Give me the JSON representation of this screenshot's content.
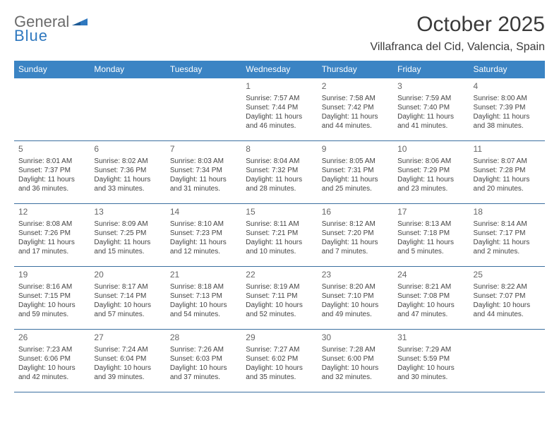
{
  "brand": {
    "line1": "General",
    "line2": "Blue"
  },
  "title": "October 2025",
  "location": "Villafranca del Cid, Valencia, Spain",
  "colors": {
    "header_bg": "#3b84c4",
    "header_text": "#ffffff",
    "rule": "#3b6fa0",
    "brand_gray": "#6b6b6b",
    "brand_blue": "#2f78bf",
    "text": "#444444"
  },
  "dow": [
    "Sunday",
    "Monday",
    "Tuesday",
    "Wednesday",
    "Thursday",
    "Friday",
    "Saturday"
  ],
  "weeks": [
    [
      {
        "n": "",
        "sr": "",
        "ss": "",
        "dl1": "",
        "dl2": ""
      },
      {
        "n": "",
        "sr": "",
        "ss": "",
        "dl1": "",
        "dl2": ""
      },
      {
        "n": "",
        "sr": "",
        "ss": "",
        "dl1": "",
        "dl2": ""
      },
      {
        "n": "1",
        "sr": "Sunrise: 7:57 AM",
        "ss": "Sunset: 7:44 PM",
        "dl1": "Daylight: 11 hours",
        "dl2": "and 46 minutes."
      },
      {
        "n": "2",
        "sr": "Sunrise: 7:58 AM",
        "ss": "Sunset: 7:42 PM",
        "dl1": "Daylight: 11 hours",
        "dl2": "and 44 minutes."
      },
      {
        "n": "3",
        "sr": "Sunrise: 7:59 AM",
        "ss": "Sunset: 7:40 PM",
        "dl1": "Daylight: 11 hours",
        "dl2": "and 41 minutes."
      },
      {
        "n": "4",
        "sr": "Sunrise: 8:00 AM",
        "ss": "Sunset: 7:39 PM",
        "dl1": "Daylight: 11 hours",
        "dl2": "and 38 minutes."
      }
    ],
    [
      {
        "n": "5",
        "sr": "Sunrise: 8:01 AM",
        "ss": "Sunset: 7:37 PM",
        "dl1": "Daylight: 11 hours",
        "dl2": "and 36 minutes."
      },
      {
        "n": "6",
        "sr": "Sunrise: 8:02 AM",
        "ss": "Sunset: 7:36 PM",
        "dl1": "Daylight: 11 hours",
        "dl2": "and 33 minutes."
      },
      {
        "n": "7",
        "sr": "Sunrise: 8:03 AM",
        "ss": "Sunset: 7:34 PM",
        "dl1": "Daylight: 11 hours",
        "dl2": "and 31 minutes."
      },
      {
        "n": "8",
        "sr": "Sunrise: 8:04 AM",
        "ss": "Sunset: 7:32 PM",
        "dl1": "Daylight: 11 hours",
        "dl2": "and 28 minutes."
      },
      {
        "n": "9",
        "sr": "Sunrise: 8:05 AM",
        "ss": "Sunset: 7:31 PM",
        "dl1": "Daylight: 11 hours",
        "dl2": "and 25 minutes."
      },
      {
        "n": "10",
        "sr": "Sunrise: 8:06 AM",
        "ss": "Sunset: 7:29 PM",
        "dl1": "Daylight: 11 hours",
        "dl2": "and 23 minutes."
      },
      {
        "n": "11",
        "sr": "Sunrise: 8:07 AM",
        "ss": "Sunset: 7:28 PM",
        "dl1": "Daylight: 11 hours",
        "dl2": "and 20 minutes."
      }
    ],
    [
      {
        "n": "12",
        "sr": "Sunrise: 8:08 AM",
        "ss": "Sunset: 7:26 PM",
        "dl1": "Daylight: 11 hours",
        "dl2": "and 17 minutes."
      },
      {
        "n": "13",
        "sr": "Sunrise: 8:09 AM",
        "ss": "Sunset: 7:25 PM",
        "dl1": "Daylight: 11 hours",
        "dl2": "and 15 minutes."
      },
      {
        "n": "14",
        "sr": "Sunrise: 8:10 AM",
        "ss": "Sunset: 7:23 PM",
        "dl1": "Daylight: 11 hours",
        "dl2": "and 12 minutes."
      },
      {
        "n": "15",
        "sr": "Sunrise: 8:11 AM",
        "ss": "Sunset: 7:21 PM",
        "dl1": "Daylight: 11 hours",
        "dl2": "and 10 minutes."
      },
      {
        "n": "16",
        "sr": "Sunrise: 8:12 AM",
        "ss": "Sunset: 7:20 PM",
        "dl1": "Daylight: 11 hours",
        "dl2": "and 7 minutes."
      },
      {
        "n": "17",
        "sr": "Sunrise: 8:13 AM",
        "ss": "Sunset: 7:18 PM",
        "dl1": "Daylight: 11 hours",
        "dl2": "and 5 minutes."
      },
      {
        "n": "18",
        "sr": "Sunrise: 8:14 AM",
        "ss": "Sunset: 7:17 PM",
        "dl1": "Daylight: 11 hours",
        "dl2": "and 2 minutes."
      }
    ],
    [
      {
        "n": "19",
        "sr": "Sunrise: 8:16 AM",
        "ss": "Sunset: 7:15 PM",
        "dl1": "Daylight: 10 hours",
        "dl2": "and 59 minutes."
      },
      {
        "n": "20",
        "sr": "Sunrise: 8:17 AM",
        "ss": "Sunset: 7:14 PM",
        "dl1": "Daylight: 10 hours",
        "dl2": "and 57 minutes."
      },
      {
        "n": "21",
        "sr": "Sunrise: 8:18 AM",
        "ss": "Sunset: 7:13 PM",
        "dl1": "Daylight: 10 hours",
        "dl2": "and 54 minutes."
      },
      {
        "n": "22",
        "sr": "Sunrise: 8:19 AM",
        "ss": "Sunset: 7:11 PM",
        "dl1": "Daylight: 10 hours",
        "dl2": "and 52 minutes."
      },
      {
        "n": "23",
        "sr": "Sunrise: 8:20 AM",
        "ss": "Sunset: 7:10 PM",
        "dl1": "Daylight: 10 hours",
        "dl2": "and 49 minutes."
      },
      {
        "n": "24",
        "sr": "Sunrise: 8:21 AM",
        "ss": "Sunset: 7:08 PM",
        "dl1": "Daylight: 10 hours",
        "dl2": "and 47 minutes."
      },
      {
        "n": "25",
        "sr": "Sunrise: 8:22 AM",
        "ss": "Sunset: 7:07 PM",
        "dl1": "Daylight: 10 hours",
        "dl2": "and 44 minutes."
      }
    ],
    [
      {
        "n": "26",
        "sr": "Sunrise: 7:23 AM",
        "ss": "Sunset: 6:06 PM",
        "dl1": "Daylight: 10 hours",
        "dl2": "and 42 minutes."
      },
      {
        "n": "27",
        "sr": "Sunrise: 7:24 AM",
        "ss": "Sunset: 6:04 PM",
        "dl1": "Daylight: 10 hours",
        "dl2": "and 39 minutes."
      },
      {
        "n": "28",
        "sr": "Sunrise: 7:26 AM",
        "ss": "Sunset: 6:03 PM",
        "dl1": "Daylight: 10 hours",
        "dl2": "and 37 minutes."
      },
      {
        "n": "29",
        "sr": "Sunrise: 7:27 AM",
        "ss": "Sunset: 6:02 PM",
        "dl1": "Daylight: 10 hours",
        "dl2": "and 35 minutes."
      },
      {
        "n": "30",
        "sr": "Sunrise: 7:28 AM",
        "ss": "Sunset: 6:00 PM",
        "dl1": "Daylight: 10 hours",
        "dl2": "and 32 minutes."
      },
      {
        "n": "31",
        "sr": "Sunrise: 7:29 AM",
        "ss": "Sunset: 5:59 PM",
        "dl1": "Daylight: 10 hours",
        "dl2": "and 30 minutes."
      },
      {
        "n": "",
        "sr": "",
        "ss": "",
        "dl1": "",
        "dl2": ""
      }
    ]
  ]
}
